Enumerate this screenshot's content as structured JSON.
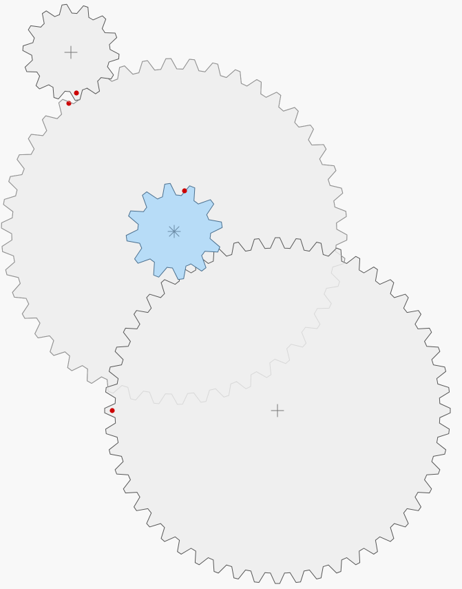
{
  "colors": {
    "background": "#f8f8f8",
    "gear_fill": "#efefef",
    "gear_stroke": "#555555",
    "gear_behind_stroke": "#c4c4c4",
    "driver_fill": "#b7dcf7",
    "driver_stroke": "#4a6f8e",
    "marker": "#cc0000"
  },
  "gears": [
    {
      "id": "top-left-gear",
      "teeth": 14,
      "role": "idler",
      "highlighted": false,
      "center_mark": "plus"
    },
    {
      "id": "large-upper-gear",
      "teeth": 46,
      "role": "idler",
      "highlighted": false,
      "center_mark": "none"
    },
    {
      "id": "driver-gear",
      "teeth": 12,
      "role": "driver",
      "highlighted": true,
      "center_mark": "asterisk"
    },
    {
      "id": "large-lower-gear",
      "teeth": 52,
      "role": "idler",
      "highlighted": false,
      "center_mark": "plus"
    }
  ]
}
